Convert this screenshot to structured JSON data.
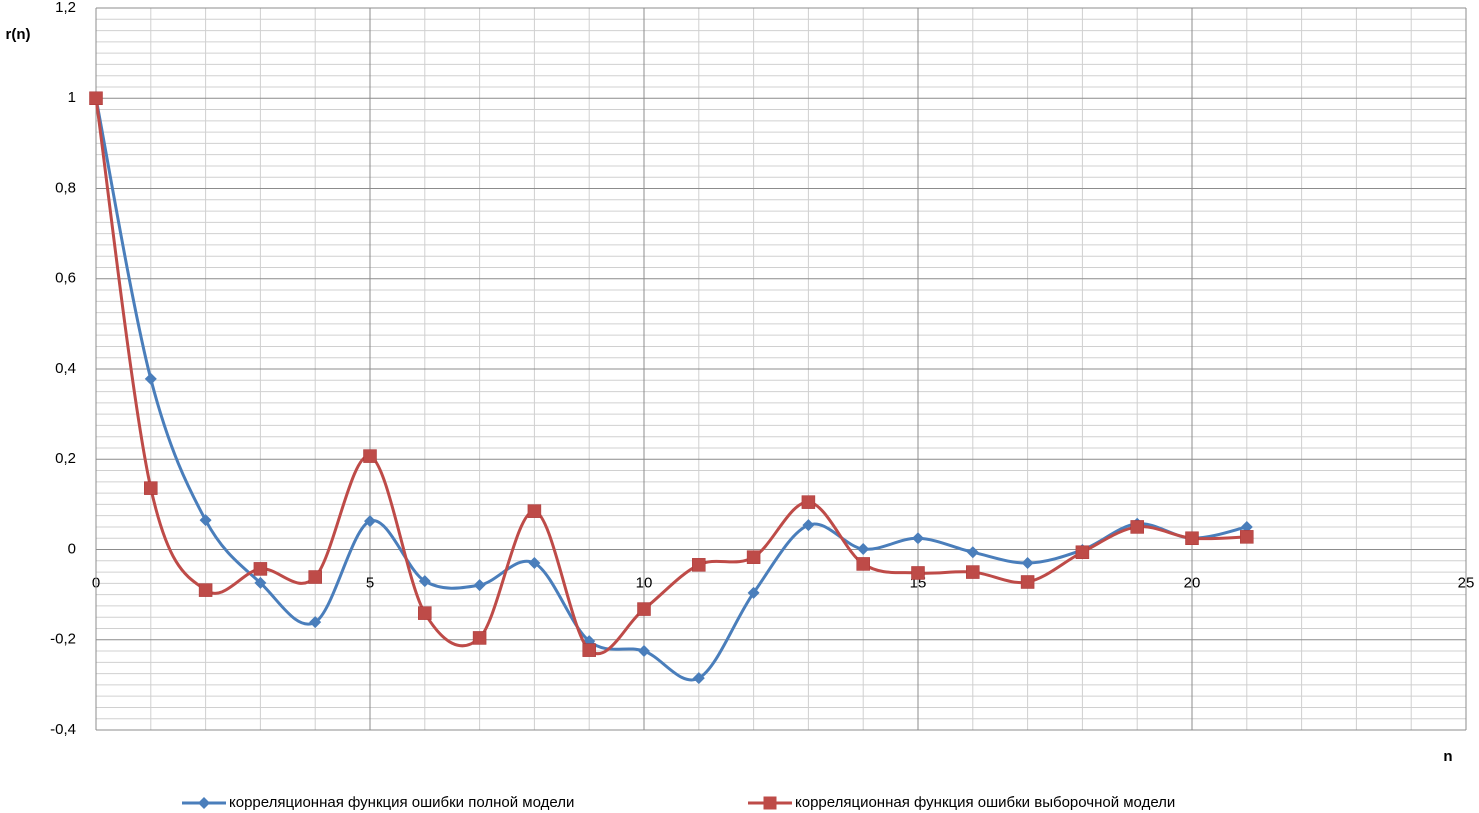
{
  "chart_data": {
    "type": "line",
    "smooth": true,
    "y_label": "r(n)",
    "x_label": "n",
    "x": [
      0,
      1,
      2,
      3,
      4,
      5,
      6,
      7,
      8,
      9,
      10,
      11,
      12,
      13,
      14,
      15,
      16,
      17,
      18,
      19,
      20,
      21
    ],
    "series": [
      {
        "name": "корреляционная функция ошибки полной модели",
        "color": "#4a7ebb",
        "marker": "diamond",
        "values": [
          1,
          0.378,
          0.065,
          -0.074,
          -0.161,
          0.063,
          -0.07,
          -0.079,
          -0.03,
          -0.203,
          -0.225,
          -0.285,
          -0.096,
          0.054,
          0.001,
          0.025,
          -0.006,
          -0.03,
          -0.001,
          0.057,
          0.025,
          0.05
        ]
      },
      {
        "name": "корреляционная функция ошибки выборочной модели",
        "color": "#be4b48",
        "marker": "square",
        "values": [
          1,
          0.136,
          -0.09,
          -0.043,
          -0.061,
          0.207,
          -0.141,
          -0.196,
          0.085,
          -0.223,
          -0.132,
          -0.034,
          -0.017,
          0.105,
          -0.032,
          -0.052,
          -0.05,
          -0.072,
          -0.006,
          0.05,
          0.025,
          0.028
        ]
      }
    ],
    "xlim": [
      0,
      25
    ],
    "xticks": [
      0,
      5,
      10,
      15,
      20,
      25
    ],
    "ylim": [
      -0.4,
      1.2
    ],
    "yticks": [
      {
        "value": -0.4,
        "label": "-0,4"
      },
      {
        "value": -0.2,
        "label": "-0,2"
      },
      0,
      {
        "value": 0.2,
        "label": "0,2"
      },
      {
        "value": 0.4,
        "label": "0,4"
      },
      {
        "value": 0.6,
        "label": "0,6"
      },
      {
        "value": 0.8,
        "label": "0,8"
      },
      1,
      {
        "value": 1.2,
        "label": "1,2"
      }
    ],
    "grid": true,
    "legend": "bottom"
  }
}
